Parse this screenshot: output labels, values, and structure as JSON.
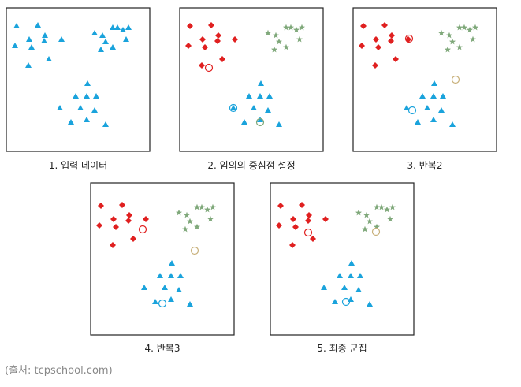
{
  "panels": [
    {
      "caption": "1. 입력 데이터"
    },
    {
      "caption": "2. 임의의 중심점 설정"
    },
    {
      "caption": "3. 반복2"
    },
    {
      "caption": "4. 반복3"
    },
    {
      "caption": "5. 최종 군집"
    }
  ],
  "source": "(출처: tcpschool.com)"
}
